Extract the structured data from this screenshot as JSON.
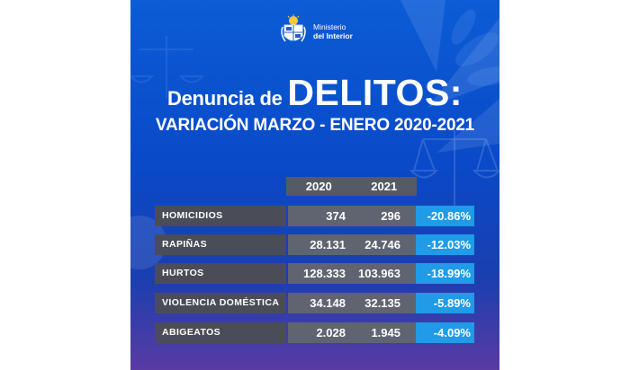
{
  "brand": {
    "line1": "Ministerio",
    "line2": "del Interior"
  },
  "title": {
    "prefix": "Denuncia de ",
    "emphasis": "DELITOS:",
    "subtitle": "VARIACIÓN MARZO - ENERO 2020-2021"
  },
  "table": {
    "columns": [
      "2020",
      "2021"
    ],
    "rows": [
      {
        "label": "HOMICIDIOS",
        "v2020": "374",
        "v2021": "296",
        "change": "-20.86%"
      },
      {
        "label": "RAPIÑAS",
        "v2020": "28.131",
        "v2021": "24.746",
        "change": "-12.03%"
      },
      {
        "label": "HURTOS",
        "v2020": "128.333",
        "v2021": "103.963",
        "change": "-18.99%"
      },
      {
        "label": "VIOLENCIA DOMÉSTICA",
        "v2020": "34.148",
        "v2021": "32.135",
        "change": "-5.89%"
      },
      {
        "label": "ABIGEATOS",
        "v2020": "2.028",
        "v2021": "1.945",
        "change": "-4.09%"
      }
    ]
  },
  "colors": {
    "background_top": "#0b5cd6",
    "background_bottom": "#5a3aa3",
    "label_cell": "#4a4d57",
    "value_cell": "#5f6470",
    "change_cell": "#1f9be8",
    "text": "#ffffff"
  },
  "icons": {
    "logo": "uruguay-coat-of-arms-icon",
    "background": "scales-of-justice-icon"
  }
}
